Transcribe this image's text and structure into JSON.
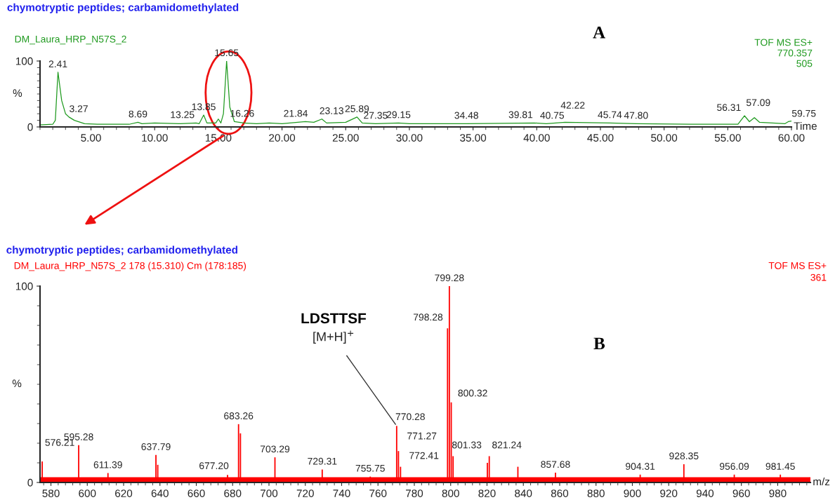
{
  "chart_data": [
    {
      "type": "line",
      "title": "chymotryptic peptides; carbamidomethylated",
      "subtitle": "DM_Laura_HRP_N57S_2",
      "xlabel": "Time",
      "ylabel": "%",
      "xlim": [
        1,
        60
      ],
      "xticks": [
        {
          "value": 5,
          "label": "5.00"
        },
        {
          "value": 10,
          "label": "10.00"
        },
        {
          "value": 15,
          "label": "15.00"
        },
        {
          "value": 20,
          "label": "20.00"
        },
        {
          "value": 25,
          "label": "25.00"
        },
        {
          "value": 30,
          "label": "30.00"
        },
        {
          "value": 35,
          "label": "35.00"
        },
        {
          "value": 40,
          "label": "40.00"
        },
        {
          "value": 45,
          "label": "45.00"
        },
        {
          "value": 50,
          "label": "50.00"
        },
        {
          "value": 55,
          "label": "55.00"
        },
        {
          "value": 60,
          "label": "60.00"
        }
      ],
      "ylim": [
        0,
        100
      ],
      "yticks": [
        0,
        100
      ],
      "grid": false,
      "legend": false,
      "marker": "none",
      "line_style": "solid",
      "series": [
        {
          "color": "#1f9a1f",
          "x": [
            1.0,
            2.0,
            2.2,
            2.41,
            2.7,
            3.0,
            3.27,
            3.7,
            4.5,
            5.5,
            8.0,
            8.69,
            9.0,
            10.0,
            12.0,
            13.25,
            13.5,
            13.85,
            14.1,
            14.8,
            15.0,
            15.2,
            15.4,
            15.65,
            15.9,
            16.26,
            17.0,
            18.0,
            19.0,
            20.0,
            21.84,
            22.5,
            23.13,
            23.5,
            25.0,
            25.89,
            26.3,
            27.35,
            29.15,
            30.0,
            34.48,
            39.81,
            40.75,
            42.22,
            45.74,
            47.8,
            52.0,
            55.8,
            56.31,
            56.7,
            57.09,
            57.5,
            58.5,
            59.5,
            59.75,
            60.0
          ],
          "values": [
            3,
            4,
            10,
            83,
            40,
            20,
            15,
            10,
            5,
            4,
            4,
            7,
            5,
            6,
            5,
            6,
            5,
            18,
            6,
            6,
            12,
            6,
            20,
            100,
            30,
            8,
            6,
            5,
            6,
            5,
            8,
            7,
            12,
            6,
            7,
            15,
            6,
            5,
            6,
            5,
            5,
            6,
            5,
            7,
            6,
            5,
            4,
            4,
            17,
            8,
            14,
            7,
            6,
            5,
            8,
            9
          ]
        }
      ],
      "annotations": [
        "TOF MS ES+",
        "770.357",
        "505",
        "A",
        {
          "text": "2.41",
          "x": 2.41,
          "y": 83
        },
        {
          "text": "3.27",
          "x": 3.27,
          "y": 15
        },
        {
          "text": "8.69",
          "x": 8.69,
          "y": 7
        },
        {
          "text": "13.25",
          "x": 13.25,
          "y": 6
        },
        {
          "text": "13.85",
          "x": 13.85,
          "y": 18
        },
        {
          "text": "15.65",
          "x": 15.65,
          "y": 100
        },
        {
          "text": "16.26",
          "x": 16.26,
          "y": 8
        },
        {
          "text": "21.84",
          "x": 21.84,
          "y": 8
        },
        {
          "text": "23.13",
          "x": 23.13,
          "y": 12
        },
        {
          "text": "25.89",
          "x": 25.89,
          "y": 15
        },
        {
          "text": "27.35",
          "x": 27.35,
          "y": 5
        },
        {
          "text": "29.15",
          "x": 29.15,
          "y": 6
        },
        {
          "text": "34.48",
          "x": 34.48,
          "y": 5
        },
        {
          "text": "39.81",
          "x": 39.81,
          "y": 6
        },
        {
          "text": "40.75",
          "x": 40.75,
          "y": 5
        },
        {
          "text": "42.22",
          "x": 42.22,
          "y": 7
        },
        {
          "text": "45.74",
          "x": 45.74,
          "y": 6
        },
        {
          "text": "47.80",
          "x": 47.8,
          "y": 5
        },
        {
          "text": "56.31",
          "x": 56.31,
          "y": 17
        },
        {
          "text": "57.09",
          "x": 57.09,
          "y": 14
        },
        {
          "text": "59.75",
          "x": 59.75,
          "y": 8
        }
      ]
    },
    {
      "type": "bar",
      "title": "chymotryptic peptides; carbamidomethylated",
      "subtitle": "DM_Laura_HRP_N57S_2 178 (15.310) Cm (178:185)",
      "xlabel": "m/z",
      "ylabel": "%",
      "xlim": [
        574,
        998
      ],
      "xticks": [
        580,
        600,
        620,
        640,
        660,
        680,
        700,
        720,
        740,
        760,
        780,
        800,
        820,
        840,
        860,
        880,
        900,
        920,
        940,
        960,
        980
      ],
      "ylim": [
        0,
        100
      ],
      "yticks": [
        0,
        100
      ],
      "grid": false,
      "legend": false,
      "series": [
        {
          "type": "area",
          "color": "#ff0000",
          "x": [
            574,
            998
          ],
          "values": [
            2.5,
            2.5
          ]
        },
        {
          "color": "#ff0000",
          "x": [
            575.21,
            595.28,
            611.39,
            637.79,
            638.8,
            677.2,
            683.26,
            684.3,
            703.29,
            729.31,
            755.75,
            770.28,
            771.27,
            772.41,
            798.28,
            799.28,
            800.32,
            801.33,
            820.2,
            821.24,
            837.0,
            857.68,
            904.31,
            928.35,
            956.09,
            981.45
          ],
          "values": [
            10.7,
            19,
            4.8,
            14,
            9,
            3.8,
            29.7,
            25,
            12.8,
            6.6,
            3,
            28.8,
            16,
            8,
            78.5,
            100,
            40.8,
            13.4,
            10,
            13.4,
            8,
            5,
            4,
            9.3,
            4,
            4
          ]
        }
      ],
      "annotations": [
        "TOF MS ES+",
        "361",
        "B",
        "LDSTTSF",
        {
          "text": "[M+H]$^{+}$",
          "x": 770.28,
          "y": 28.8
        },
        {
          "text": "576.21",
          "x": 575.21,
          "y": 10.7
        },
        {
          "text": "595.28",
          "x": 595.28,
          "y": 19
        },
        {
          "text": "611.39",
          "x": 611.39,
          "y": 4.8
        },
        {
          "text": "637.79",
          "x": 637.79,
          "y": 14
        },
        {
          "text": "677.20",
          "x": 677.2,
          "y": 3.8
        },
        {
          "text": "683.26",
          "x": 683.26,
          "y": 29.7
        },
        {
          "text": "703.29",
          "x": 703.29,
          "y": 12.8
        },
        {
          "text": "729.31",
          "x": 729.31,
          "y": 6.6
        },
        {
          "text": "755.75",
          "x": 755.75,
          "y": 3
        },
        {
          "text": "770.28",
          "x": 770.28,
          "y": 28.8
        },
        {
          "text": "771.27",
          "x": 771.27,
          "y": 16
        },
        {
          "text": "772.41",
          "x": 772.41,
          "y": 8
        },
        {
          "text": "798.28",
          "x": 798.28,
          "y": 78.5
        },
        {
          "text": "799.28",
          "x": 799.28,
          "y": 100
        },
        {
          "text": "800.32",
          "x": 800.32,
          "y": 40.8
        },
        {
          "text": "801.33",
          "x": 801.33,
          "y": 13.4
        },
        {
          "text": "821.24",
          "x": 821.24,
          "y": 13.4
        },
        {
          "text": "857.68",
          "x": 857.68,
          "y": 5
        },
        {
          "text": "904.31",
          "x": 904.31,
          "y": 4
        },
        {
          "text": "928.35",
          "x": 928.35,
          "y": 9.3
        },
        {
          "text": "956.09",
          "x": 956.09,
          "y": 4
        },
        {
          "text": "981.45",
          "x": 981.45,
          "y": 4
        }
      ]
    }
  ]
}
